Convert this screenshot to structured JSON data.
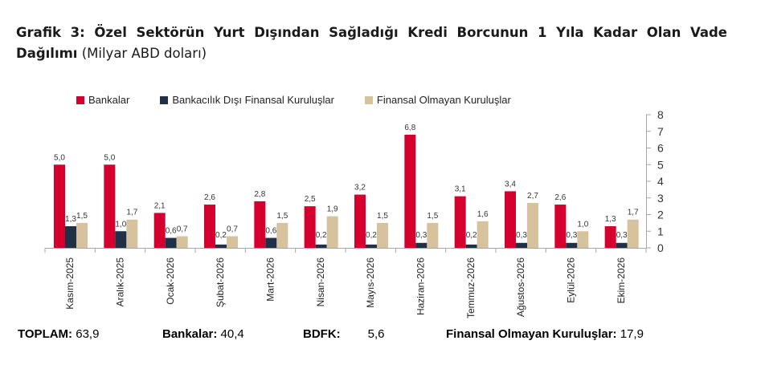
{
  "title": {
    "bold": "Grafik 3: Özel Sektörün Yurt Dışından Sağladığı Kredi Borcunun 1 Yıla Kadar Olan Vade Dağılımı",
    "unit": "(Milyar ABD doları)"
  },
  "colors": {
    "bankalar": "#d6002e",
    "bdfk": "#1f3047",
    "finansal_olmayan": "#d6c29c",
    "axis": "#a6a6a6",
    "text": "#333333"
  },
  "legend": [
    {
      "label": "Bankalar",
      "color": "#d6002e"
    },
    {
      "label": "Bankacılık Dışı Finansal Kuruluşlar",
      "color": "#1f3047"
    },
    {
      "label": "Finansal Olmayan Kuruluşlar",
      "color": "#d6c29c"
    }
  ],
  "summary": {
    "toplam_label": "TOPLAM:",
    "toplam_value": "63,9",
    "bankalar_label": "Bankalar:",
    "bankalar_value": "40,4",
    "bdfk_label": "BDFK:",
    "bdfk_value": "5,6",
    "fok_label": "Finansal Olmayan Kuruluşlar:",
    "fok_value": "17,9"
  },
  "chart_data": {
    "type": "bar",
    "title": "Grafik 3: Özel Sektörün Yurt Dışından Sağladığı Kredi Borcunun 1 Yıla Kadar Olan Vade Dağılımı (Milyar ABD doları)",
    "xlabel": "",
    "ylabel": "",
    "ylim": [
      0,
      8
    ],
    "yticks": [
      0,
      1,
      2,
      3,
      4,
      5,
      6,
      7,
      8
    ],
    "y_axis_position": "right",
    "grid": false,
    "legend_position": "top",
    "categories": [
      "Kasım-2025",
      "Aralık-2025",
      "Ocak-2026",
      "Şubat-2026",
      "Mart-2026",
      "Nisan-2026",
      "Mayıs-2026",
      "Haziran-2026",
      "Temmuz-2026",
      "Ağustos-2026",
      "Eylül-2026",
      "Ekim-2026"
    ],
    "series": [
      {
        "name": "Bankalar",
        "color": "#d6002e",
        "values": [
          5.0,
          5.0,
          2.1,
          2.6,
          2.8,
          2.5,
          3.2,
          6.8,
          3.1,
          3.4,
          2.6,
          1.3
        ]
      },
      {
        "name": "Bankacılık Dışı Finansal Kuruluşlar",
        "color": "#1f3047",
        "values": [
          1.3,
          1.0,
          0.6,
          0.2,
          0.6,
          0.2,
          0.2,
          0.3,
          0.2,
          0.3,
          0.3,
          0.3
        ]
      },
      {
        "name": "Finansal Olmayan Kuruluşlar",
        "color": "#d6c29c",
        "values": [
          1.5,
          1.7,
          0.7,
          0.7,
          1.5,
          1.9,
          1.5,
          1.5,
          1.6,
          2.7,
          1.0,
          1.7
        ]
      }
    ],
    "labels": [
      [
        "5,0",
        "5,0",
        "2,1",
        "2,6",
        "2,8",
        "2,5",
        "3,2",
        "6,8",
        "3,1",
        "3,4",
        "2,6",
        "1,3"
      ],
      [
        "1,3",
        "1,0",
        "0,6",
        "0,2",
        "0,6",
        "0,2",
        "0,2",
        "0,3",
        "0,2",
        "0,3",
        "0,3",
        "0,3"
      ],
      [
        "1,5",
        "1,7",
        "0,7",
        "0,7",
        "1,5",
        "1,9",
        "1,5",
        "1,5",
        "1,6",
        "2,7",
        "1,0",
        "1,7"
      ]
    ],
    "annotations": [
      "TOPLAM: 63,9",
      "Bankalar: 40,4",
      "BDFK: 5,6",
      "Finansal Olmayan Kuruluşlar: 17,9"
    ]
  }
}
